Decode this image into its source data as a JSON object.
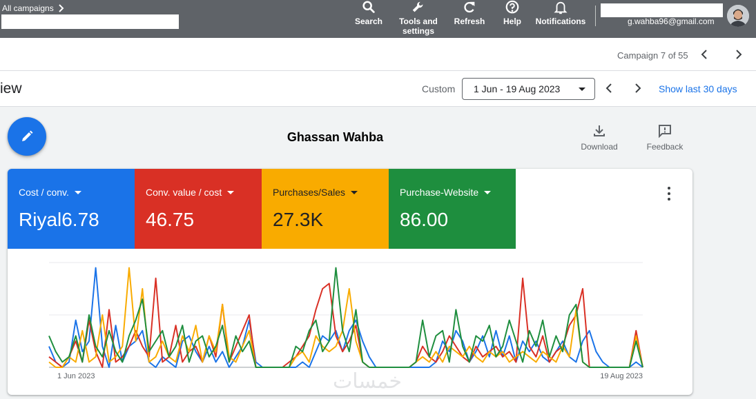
{
  "topbar": {
    "breadcrumb": "All campaigns",
    "tools": [
      {
        "label": "Search",
        "icon": "search-icon"
      },
      {
        "label": "Tools and settings",
        "icon": "wrench-icon"
      },
      {
        "label": "Refresh",
        "icon": "refresh-icon"
      },
      {
        "label": "Help",
        "icon": "help-icon"
      },
      {
        "label": "Notifications",
        "icon": "bell-icon"
      }
    ],
    "email": "g.wahba96@gmail.com"
  },
  "nav": {
    "campaign_counter": "Campaign 7 of 55"
  },
  "page": {
    "title": "iew",
    "date_label": "Custom",
    "date_range": "1 Jun - 19 Aug 2023",
    "show_last": "Show last 30 days"
  },
  "header": {
    "account_name": "Ghassan Wahba",
    "download_label": "Download",
    "feedback_label": "Feedback"
  },
  "metrics": [
    {
      "label": "Cost / conv.",
      "value": "Riyal6.78",
      "color": "#1a73e8",
      "text_color": "#ffffff"
    },
    {
      "label": "Conv. value / cost",
      "value": "46.75",
      "color": "#d93025",
      "text_color": "#ffffff"
    },
    {
      "label": "Purchases/Sales",
      "value": "27.3K",
      "color": "#f9ab00",
      "text_color": "#202124"
    },
    {
      "label": "Purchase-Website",
      "value": "86.00",
      "color": "#1e8e3e",
      "text_color": "#ffffff"
    }
  ],
  "chart_data": {
    "type": "line",
    "x_start_label": "1 Jun 2023",
    "x_end_label": "19 Aug 2023",
    "ylim": [
      0,
      1
    ],
    "grid": true,
    "series": [
      {
        "name": "Cost / conv.",
        "color": "#1a73e8",
        "values": [
          0.2,
          0.05,
          0,
          0.05,
          0.45,
          0.15,
          0.25,
          0.95,
          0.2,
          0,
          0.4,
          0.05,
          0.2,
          0.25,
          0.35,
          0.05,
          0,
          0.1,
          0.05,
          0,
          0.25,
          0.3,
          0.15,
          0.05,
          0.2,
          0.05,
          0.15,
          0,
          0.1,
          0.2,
          0.45,
          0.05,
          0,
          0,
          0,
          0,
          0,
          0,
          0.05,
          0,
          0.15,
          0.3,
          0.25,
          0.35,
          0.15,
          0.35,
          0.45,
          0.25,
          0.1,
          0,
          0,
          0,
          0,
          0,
          0,
          0,
          0,
          0,
          0.05,
          0.25,
          0.15,
          0.35,
          0.25,
          0.05,
          0.15,
          0.3,
          0.1,
          0.35,
          0.1,
          0.3,
          0.05,
          0.25,
          0.15,
          0.25,
          0.1,
          0.05,
          0.15,
          0.25,
          0.1,
          0.05,
          0.25,
          0.35,
          0.15,
          0.05,
          0,
          0,
          0,
          0,
          0.05,
          0
        ]
      },
      {
        "name": "Conv. value / cost",
        "color": "#d93025",
        "values": [
          0.1,
          0.05,
          0,
          0.1,
          0.25,
          0.05,
          0.45,
          0.15,
          0,
          0.55,
          0.05,
          0.1,
          0.2,
          0.35,
          0.2,
          0.1,
          0.85,
          0.05,
          0.1,
          0.4,
          0.05,
          0.15,
          0.2,
          0.05,
          0.3,
          0.1,
          0.6,
          0.05,
          0.2,
          0.35,
          0.5,
          0,
          0,
          0,
          0,
          0,
          0.05,
          0.1,
          0.2,
          0.3,
          0.55,
          0.75,
          0.8,
          0.3,
          0.15,
          0.25,
          0.4,
          0.05,
          0,
          0,
          0,
          0,
          0,
          0,
          0,
          0.05,
          0.2,
          0.1,
          0.05,
          0.15,
          0.3,
          0.2,
          0.1,
          0.05,
          0.2,
          0.1,
          0.15,
          0.2,
          0.1,
          0.15,
          0.05,
          0.85,
          0.2,
          0.1,
          0.3,
          0.05,
          0.15,
          0.2,
          0.4,
          0.5,
          0.75,
          0,
          0,
          0,
          0,
          0,
          0,
          0,
          0.35,
          0
        ]
      },
      {
        "name": "Purchases/Sales",
        "color": "#f9ab00",
        "values": [
          0.05,
          0,
          0,
          0.1,
          0.05,
          0.35,
          0.05,
          0.1,
          0.5,
          0.05,
          0.1,
          0.2,
          0.95,
          0.25,
          0.75,
          0.05,
          0.1,
          0.25,
          0.1,
          0.05,
          0.3,
          0.15,
          0.4,
          0.05,
          0.3,
          0.15,
          0.6,
          0.1,
          0.05,
          0.2,
          0.35,
          0,
          0,
          0,
          0,
          0,
          0,
          0.1,
          0.15,
          0.05,
          0.3,
          0.2,
          0.15,
          0.2,
          0.35,
          0.75,
          0.25,
          0.05,
          0,
          0,
          0,
          0,
          0,
          0,
          0,
          0.05,
          0.1,
          0.05,
          0.15,
          0.05,
          0.2,
          0.15,
          0.1,
          0.2,
          0.1,
          0.05,
          0.15,
          0.1,
          0.15,
          0.05,
          0.1,
          0.15,
          0.1,
          0.05,
          0.15,
          0.1,
          0.05,
          0.2,
          0.1,
          0.55,
          0.05,
          0,
          0,
          0,
          0,
          0,
          0,
          0,
          0.3,
          0
        ]
      },
      {
        "name": "Purchase-Website",
        "color": "#1e8e3e",
        "values": [
          0.3,
          0.15,
          0.05,
          0.1,
          0.3,
          0.05,
          0.5,
          0.2,
          0.1,
          0.35,
          0.15,
          0.05,
          0.3,
          0.45,
          0.65,
          0.15,
          0.25,
          0.35,
          0.1,
          0.2,
          0.4,
          0.05,
          0.25,
          0.3,
          0.1,
          0.2,
          0.4,
          0.05,
          0.3,
          0.15,
          0.25,
          0,
          0,
          0,
          0,
          0,
          0,
          0.2,
          0.15,
          0.35,
          0.45,
          0.15,
          0.25,
          0.95,
          0.35,
          0.15,
          0.55,
          0.05,
          0,
          0,
          0,
          0,
          0,
          0,
          0,
          0.05,
          0.45,
          0.1,
          0.3,
          0.35,
          0.05,
          0.55,
          0.2,
          0.05,
          0.3,
          0.25,
          0.4,
          0.1,
          0.2,
          0.45,
          0.25,
          0.05,
          0.35,
          0.2,
          0.45,
          0.1,
          0.3,
          0.15,
          0.5,
          0.6,
          0.05,
          0,
          0,
          0,
          0,
          0,
          0,
          0,
          0.25,
          0
        ]
      }
    ]
  }
}
